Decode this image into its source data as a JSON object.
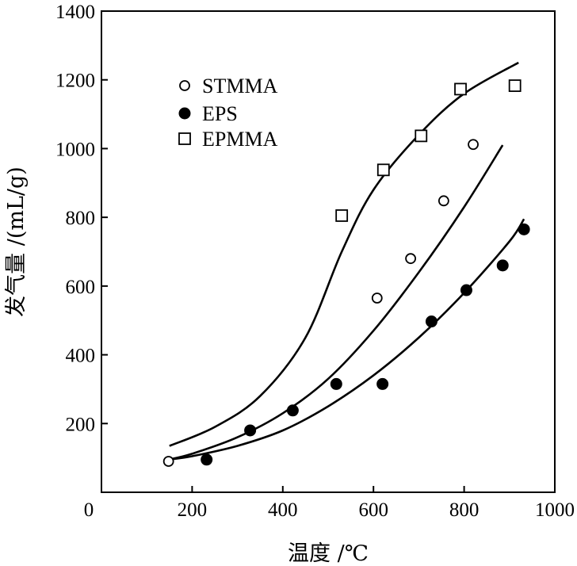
{
  "chart_data": {
    "type": "scatter",
    "title": "",
    "xlabel": "温度 /℃",
    "ylabel": "发气量 /(mL/g)",
    "xlim": [
      0,
      1000
    ],
    "ylim": [
      0,
      1400
    ],
    "grid": false,
    "legend_position": "top-left",
    "x_ticks": [
      0,
      200,
      400,
      600,
      800,
      1000
    ],
    "y_ticks": [
      200,
      400,
      600,
      800,
      1000,
      1200,
      1400
    ],
    "series": [
      {
        "name": "STMMA",
        "marker": "open-circle",
        "points": [
          [
            148,
            90
          ],
          [
            608,
            565
          ],
          [
            682,
            680
          ],
          [
            755,
            848
          ],
          [
            820,
            1012
          ]
        ],
        "fit_curve": [
          [
            148,
            95
          ],
          [
            200,
            112
          ],
          [
            300,
            160
          ],
          [
            400,
            230
          ],
          [
            500,
            330
          ],
          [
            600,
            470
          ],
          [
            700,
            640
          ],
          [
            800,
            830
          ],
          [
            885,
            1010
          ]
        ]
      },
      {
        "name": "EPS",
        "marker": "filled-circle",
        "points": [
          [
            232,
            95
          ],
          [
            328,
            180
          ],
          [
            422,
            238
          ],
          [
            518,
            315
          ],
          [
            620,
            315
          ],
          [
            728,
            497
          ],
          [
            805,
            588
          ],
          [
            885,
            660
          ],
          [
            932,
            765
          ]
        ],
        "fit_curve": [
          [
            148,
            95
          ],
          [
            200,
            105
          ],
          [
            300,
            135
          ],
          [
            400,
            180
          ],
          [
            500,
            250
          ],
          [
            600,
            340
          ],
          [
            700,
            450
          ],
          [
            800,
            580
          ],
          [
            900,
            730
          ],
          [
            932,
            795
          ]
        ]
      },
      {
        "name": "EPMMA",
        "marker": "open-square",
        "points": [
          [
            530,
            805
          ],
          [
            622,
            938
          ],
          [
            705,
            1037
          ],
          [
            792,
            1173
          ],
          [
            912,
            1183
          ]
        ],
        "fit_curve": [
          [
            150,
            135
          ],
          [
            250,
            190
          ],
          [
            350,
            280
          ],
          [
            450,
            450
          ],
          [
            530,
            700
          ],
          [
            600,
            880
          ],
          [
            700,
            1040
          ],
          [
            800,
            1160
          ],
          [
            920,
            1250
          ]
        ]
      }
    ]
  }
}
